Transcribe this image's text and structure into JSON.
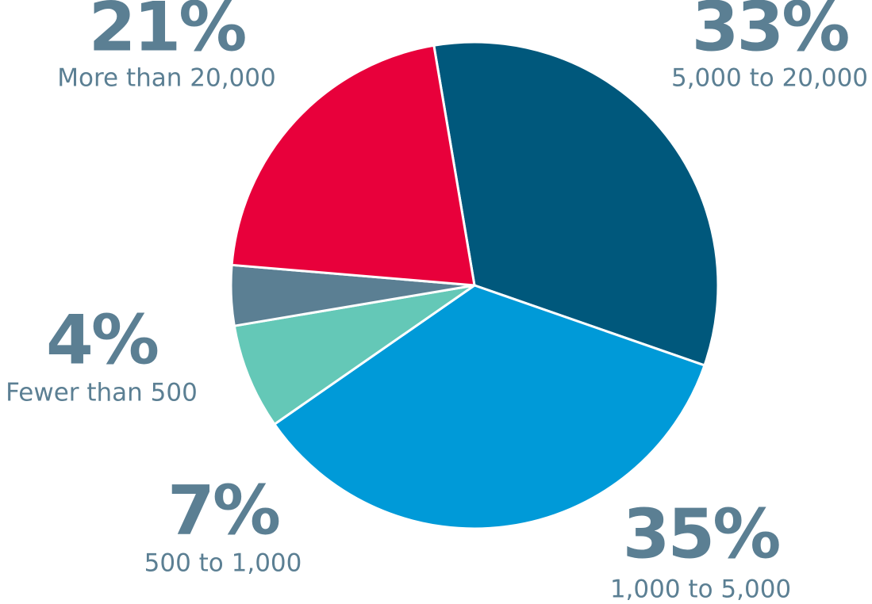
{
  "chart_data": {
    "type": "pie",
    "categories": [
      "5,000 to 20,000",
      "1,000 to 5,000",
      "500 to 1,000",
      "Fewer than 500",
      "More than 20,000"
    ],
    "values": [
      33,
      35,
      7,
      4,
      21
    ],
    "value_labels": [
      "33%",
      "35%",
      "7%",
      "4%",
      "21%"
    ],
    "colors": [
      "#00587c",
      "#009ad8",
      "#64c8b7",
      "#5b7f93",
      "#e8003b"
    ]
  }
}
